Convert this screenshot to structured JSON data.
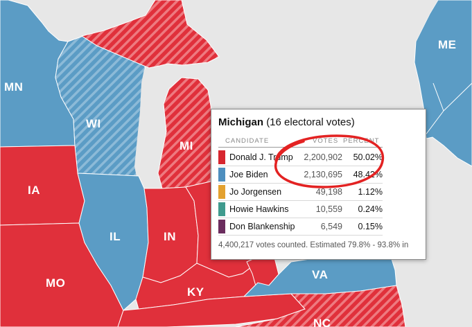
{
  "states": {
    "MN": "MN",
    "WI": "WI",
    "MI": "MI",
    "IA": "IA",
    "IL": "IL",
    "IN": "IN",
    "MO": "MO",
    "KY": "KY",
    "VA": "VA",
    "NC": "NC",
    "ME": "ME"
  },
  "colors": {
    "dem": "#5b9cc5",
    "rep": "#e0303b",
    "background": "#e7e7e7",
    "annotation": "#e32222"
  },
  "popup": {
    "state": "Michigan",
    "electoral": "(16 electoral votes)",
    "headers": {
      "candidate": "CANDIDATE",
      "votes": "VOTES",
      "percent": "PERCENT"
    },
    "candidates": [
      {
        "name": "Donald J. Trump",
        "votes": "2,200,902",
        "percent": "50.02%",
        "color": "#d7262f"
      },
      {
        "name": "Joe Biden",
        "votes": "2,130,695",
        "percent": "48.42%",
        "color": "#4e8fbf"
      },
      {
        "name": "Jo Jorgensen",
        "votes": "49,198",
        "percent": "1.12%",
        "color": "#e3a12f"
      },
      {
        "name": "Howie Hawkins",
        "votes": "10,559",
        "percent": "0.24%",
        "color": "#3f9b8e"
      },
      {
        "name": "Don Blankenship",
        "votes": "6,549",
        "percent": "0.15%",
        "color": "#6b2d5e"
      }
    ],
    "footer": "4,400,217 votes counted. Estimated 79.8% - 93.8% in"
  }
}
